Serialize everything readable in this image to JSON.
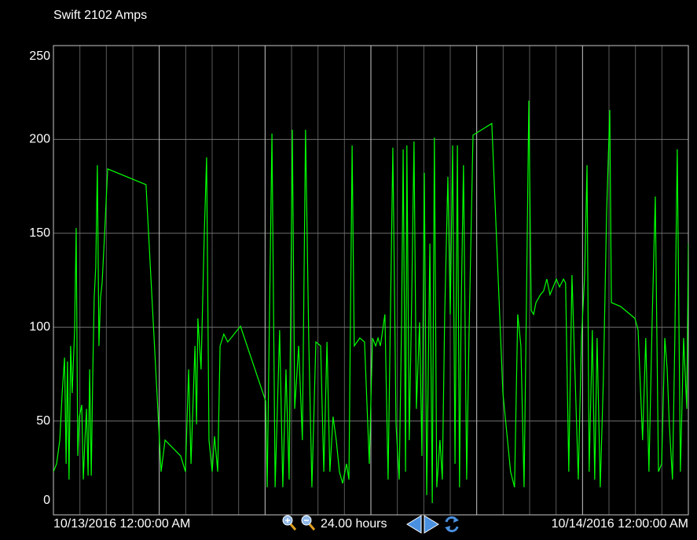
{
  "chart_data": {
    "type": "line",
    "title": "Swift 2102 Amps",
    "color": "#00ff00",
    "xlim": [
      0,
      24
    ],
    "xticks": [
      {
        "value": 0,
        "label": "10/13/2016 12:00:00 AM"
      },
      {
        "value": 24,
        "label": "10/14/2016 12:00:00 AM"
      }
    ],
    "x_major_gridlines": [
      4,
      8,
      12,
      16,
      20
    ],
    "x_minor_gridlines": [
      1,
      2,
      3,
      5,
      6,
      7,
      9,
      10,
      11,
      13,
      14,
      15,
      17,
      18,
      19,
      21,
      22,
      23
    ],
    "ylim": [
      0,
      250
    ],
    "yticks": [
      0,
      50,
      100,
      150,
      200,
      250
    ],
    "grid": true,
    "x": [
      0,
      0.12,
      0.24,
      0.33,
      0.42,
      0.48,
      0.53,
      0.59,
      0.65,
      0.71,
      0.8,
      0.86,
      0.92,
      0.98,
      1.07,
      1.13,
      1.19,
      1.25,
      1.31,
      1.37,
      1.43,
      1.49,
      1.54,
      1.6,
      1.66,
      1.72,
      1.78,
      1.84,
      1.93,
      2.05,
      3.5,
      4.07,
      4.22,
      4.81,
      4.99,
      5.11,
      5.2,
      5.35,
      5.41,
      5.46,
      5.58,
      5.7,
      5.79,
      5.88,
      6.0,
      6.09,
      6.21,
      6.3,
      6.44,
      6.59,
      7.07,
      8.02,
      8.08,
      8.26,
      8.38,
      8.55,
      8.67,
      8.79,
      8.91,
      9.03,
      9.12,
      9.27,
      9.41,
      9.53,
      9.65,
      9.77,
      9.92,
      10.1,
      10.22,
      10.34,
      10.45,
      10.57,
      10.69,
      10.81,
      10.93,
      11.08,
      11.17,
      11.29,
      11.37,
      11.58,
      11.76,
      11.94,
      12.06,
      12.18,
      12.27,
      12.36,
      12.53,
      12.65,
      12.83,
      12.95,
      13.07,
      13.16,
      13.22,
      13.31,
      13.36,
      13.45,
      13.54,
      13.63,
      13.72,
      13.84,
      13.93,
      14.02,
      14.11,
      14.23,
      14.32,
      14.4,
      14.49,
      14.61,
      14.7,
      14.79,
      14.91,
      15.0,
      15.09,
      15.18,
      15.27,
      15.35,
      15.41,
      15.5,
      15.62,
      15.71,
      15.86,
      16.57,
      16.99,
      17.28,
      17.43,
      17.55,
      17.67,
      17.79,
      17.88,
      17.97,
      18.06,
      18.15,
      18.24,
      18.41,
      18.53,
      18.65,
      18.77,
      18.89,
      19.01,
      19.13,
      19.28,
      19.36,
      19.48,
      19.6,
      19.72,
      19.84,
      19.96,
      20.08,
      20.17,
      20.25,
      20.37,
      20.46,
      20.55,
      20.67,
      20.79,
      20.91,
      21.03,
      21.09,
      21.44,
      21.98,
      22.1,
      22.27,
      22.39,
      22.51,
      22.63,
      22.75,
      22.87,
      22.99,
      23.11,
      23.2,
      23.28,
      23.4,
      23.49,
      23.58,
      23.7,
      23.82,
      23.94,
      24.0
    ],
    "values": [
      23.0,
      27.2,
      39.8,
      64.9,
      83.8,
      27.2,
      81.7,
      18.8,
      90.0,
      64.9,
      98.4,
      152.8,
      31.4,
      52.3,
      58.6,
      18.8,
      39.8,
      56.5,
      20.9,
      77.5,
      20.9,
      77.5,
      115.6,
      131.9,
      186.3,
      90.0,
      115.6,
      123.5,
      148.6,
      184.3,
      175.9,
      23.0,
      39.8,
      31.4,
      23.0,
      77.5,
      27.2,
      90.0,
      48.2,
      104.7,
      77.5,
      148.6,
      190.5,
      39.8,
      23.0,
      41.9,
      23.0,
      90.0,
      96.3,
      92.1,
      100.5,
      60.7,
      14.7,
      203.1,
      14.7,
      98.4,
      14.7,
      77.5,
      18.8,
      205.2,
      56.5,
      90.0,
      39.8,
      205.2,
      94.2,
      14.7,
      92.1,
      90.0,
      23.0,
      92.1,
      23.0,
      52.3,
      39.8,
      23.0,
      16.8,
      27.2,
      18.8,
      196.8,
      90.0,
      94.2,
      92.1,
      27.2,
      94.2,
      90.0,
      94.2,
      90.0,
      106.8,
      18.8,
      195.6,
      48.2,
      18.8,
      102.6,
      194.7,
      23.0,
      196.8,
      39.8,
      113.1,
      198.9,
      56.5,
      102.6,
      31.4,
      182.2,
      10.5,
      144.5,
      6.3,
      201.0,
      14.7,
      39.8,
      18.8,
      106.8,
      180.1,
      106.8,
      196.8,
      27.2,
      196.8,
      14.7,
      106.8,
      186.3,
      18.8,
      96.3,
      202.3,
      208.5,
      64.9,
      23.0,
      14.7,
      106.8,
      90.0,
      14.7,
      113.1,
      220.7,
      108.9,
      106.8,
      113.1,
      117.3,
      119.3,
      125.6,
      117.3,
      121.4,
      125.6,
      121.4,
      125.6,
      123.5,
      23.0,
      127.7,
      73.3,
      18.8,
      94.2,
      127.7,
      186.3,
      23.0,
      98.4,
      18.8,
      94.2,
      14.7,
      73.3,
      161.2,
      215.7,
      113.1,
      111.0,
      104.7,
      98.4,
      39.8,
      94.2,
      23.0,
      102.6,
      169.6,
      23.0,
      27.2,
      94.2,
      77.5,
      48.2,
      18.8,
      94.2,
      194.7,
      23.0,
      94.2,
      56.5,
      144.5
    ]
  },
  "toolbar": {
    "span_label": "24.00 hours"
  }
}
